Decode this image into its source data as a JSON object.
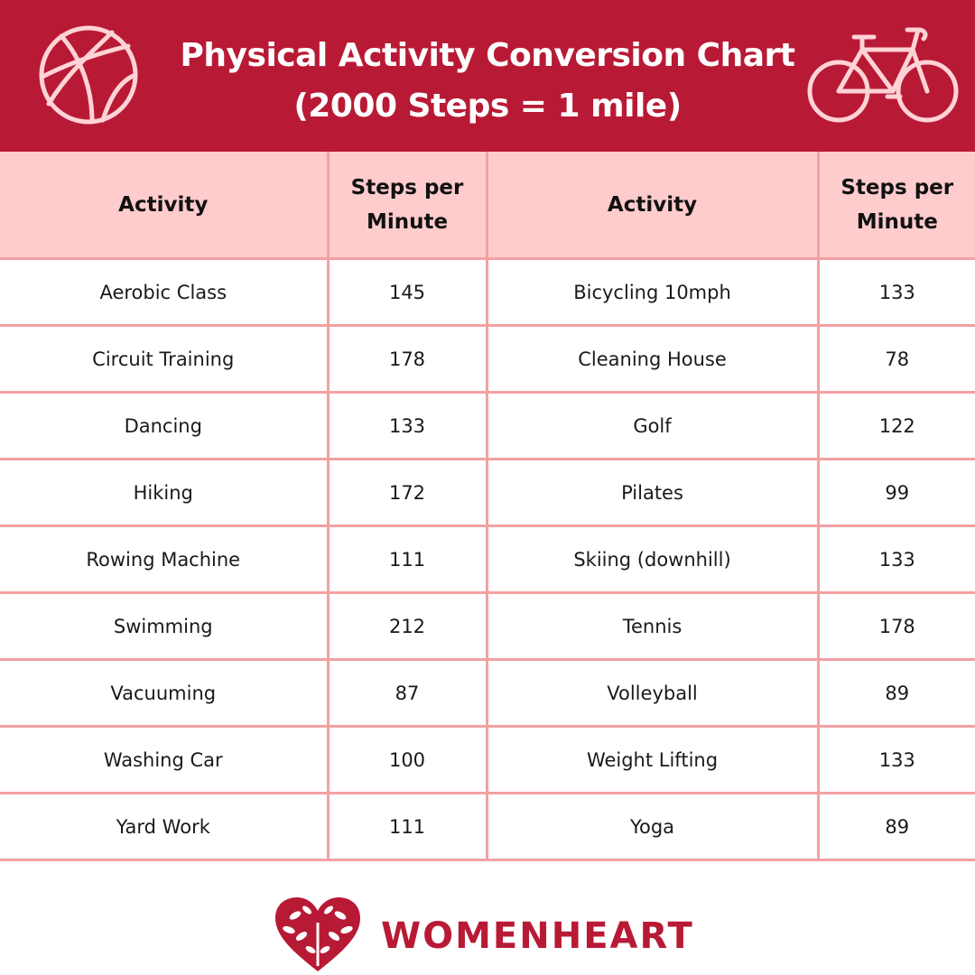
{
  "header": {
    "title_line1": "Physical Activity Conversion Chart",
    "title_line2": "(2000 Steps = 1 mile)",
    "left_icon": "basketball-icon",
    "right_icon": "bicycle-icon"
  },
  "table": {
    "headers": [
      "Activity",
      "Steps per Minute",
      "Activity",
      "Steps per Minute"
    ],
    "rows": [
      [
        "Aerobic Class",
        "145",
        "Bicycling 10mph",
        "133"
      ],
      [
        "Circuit Training",
        "178",
        "Cleaning House",
        "78"
      ],
      [
        "Dancing",
        "133",
        "Golf",
        "122"
      ],
      [
        "Hiking",
        "172",
        "Pilates",
        "99"
      ],
      [
        "Rowing Machine",
        "111",
        "Skiing (downhill)",
        "133"
      ],
      [
        "Swimming",
        "212",
        "Tennis",
        "178"
      ],
      [
        "Vacuuming",
        "87",
        "Volleyball",
        "89"
      ],
      [
        "Washing Car",
        "100",
        "Weight Lifting",
        "133"
      ],
      [
        "Yard Work",
        "111",
        "Yoga",
        "89"
      ]
    ]
  },
  "footer": {
    "brand": "WOMENHEART",
    "logo_icon": "leaf-heart-icon"
  },
  "colors": {
    "brand_red": "#b81a35",
    "header_pink": "#fecccd",
    "border_pink": "#f3a1a3",
    "icon_pink": "#ffd3d6"
  }
}
